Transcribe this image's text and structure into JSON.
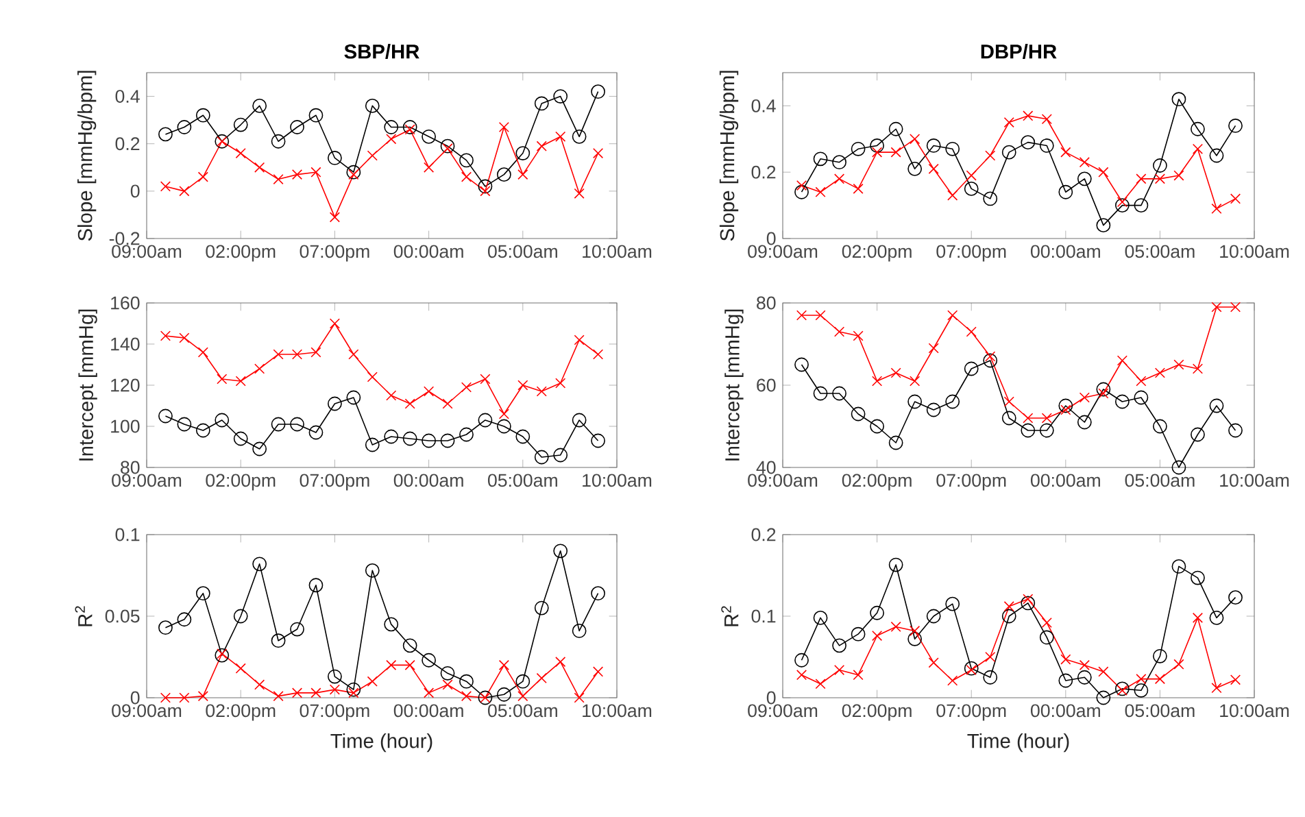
{
  "chart_data": [
    {
      "type": "line",
      "title": "SBP/HR",
      "ylabel": "Slope [mmHg/bpm]",
      "x": [
        "2000-01-01T10:00",
        "2000-01-01T11:00",
        "2000-01-01T12:00",
        "2000-01-01T13:00",
        "2000-01-01T14:00",
        "2000-01-01T15:00",
        "2000-01-01T16:00",
        "2000-01-01T17:00",
        "2000-01-01T18:00",
        "2000-01-01T19:00",
        "2000-01-01T20:00",
        "2000-01-01T21:00",
        "2000-01-01T22:00",
        "2000-01-01T23:00",
        "2000-01-02T00:00",
        "2000-01-02T01:00",
        "2000-01-02T02:00",
        "2000-01-02T03:00",
        "2000-01-02T04:00",
        "2000-01-02T05:00",
        "2000-01-02T06:00",
        "2000-01-02T07:00",
        "2000-01-02T08:00",
        "2000-01-02T09:00"
      ],
      "xlim": [
        "2000-01-01T09:00",
        "2000-01-02T10:00"
      ],
      "xticks": [
        {
          "value": "2000-01-01T09:00",
          "label": "09:00am"
        },
        {
          "value": "2000-01-01T14:00",
          "label": "02:00pm"
        },
        {
          "value": "2000-01-01T19:00",
          "label": "07:00pm"
        },
        {
          "value": "2000-01-02T00:00",
          "label": "00:00am"
        },
        {
          "value": "2000-01-02T05:00",
          "label": "05:00am"
        },
        {
          "value": "2000-01-02T10:00",
          "label": "10:00am"
        }
      ],
      "ylim": [
        -0.2,
        0.5
      ],
      "yticks": [
        -0.2,
        0,
        0.2,
        0.4
      ],
      "series": [
        {
          "color": "#000000",
          "marker": "circle",
          "values": [
            0.24,
            0.27,
            0.32,
            0.21,
            0.28,
            0.36,
            0.21,
            0.27,
            0.32,
            0.14,
            0.08,
            0.36,
            0.27,
            0.27,
            0.23,
            0.19,
            0.13,
            0.02,
            0.07,
            0.16,
            0.37,
            0.4,
            0.23,
            0.42
          ]
        },
        {
          "color": "#ff0000",
          "marker": "cross",
          "values": [
            0.02,
            0,
            0.06,
            0.21,
            0.16,
            0.1,
            0.05,
            0.07,
            0.08,
            -0.11,
            0.07,
            0.15,
            0.22,
            0.26,
            0.1,
            0.18,
            0.06,
            0,
            0.27,
            0.07,
            0.19,
            0.23,
            -0.01,
            0.16
          ]
        }
      ]
    },
    {
      "type": "line",
      "title": "DBP/HR",
      "ylabel": "Slope [mmHg/bpm]",
      "x": [
        "2000-01-01T10:00",
        "2000-01-01T11:00",
        "2000-01-01T12:00",
        "2000-01-01T13:00",
        "2000-01-01T14:00",
        "2000-01-01T15:00",
        "2000-01-01T16:00",
        "2000-01-01T17:00",
        "2000-01-01T18:00",
        "2000-01-01T19:00",
        "2000-01-01T20:00",
        "2000-01-01T21:00",
        "2000-01-01T22:00",
        "2000-01-01T23:00",
        "2000-01-02T00:00",
        "2000-01-02T01:00",
        "2000-01-02T02:00",
        "2000-01-02T03:00",
        "2000-01-02T04:00",
        "2000-01-02T05:00",
        "2000-01-02T06:00",
        "2000-01-02T07:00",
        "2000-01-02T08:00",
        "2000-01-02T09:00"
      ],
      "xlim": [
        "2000-01-01T09:00",
        "2000-01-02T10:00"
      ],
      "xticks": [
        {
          "value": "2000-01-01T09:00",
          "label": "09:00am"
        },
        {
          "value": "2000-01-01T14:00",
          "label": "02:00pm"
        },
        {
          "value": "2000-01-01T19:00",
          "label": "07:00pm"
        },
        {
          "value": "2000-01-02T00:00",
          "label": "00:00am"
        },
        {
          "value": "2000-01-02T05:00",
          "label": "05:00am"
        },
        {
          "value": "2000-01-02T10:00",
          "label": "10:00am"
        }
      ],
      "ylim": [
        0,
        0.5
      ],
      "yticks": [
        0,
        0.2,
        0.4
      ],
      "series": [
        {
          "color": "#000000",
          "marker": "circle",
          "values": [
            0.14,
            0.24,
            0.23,
            0.27,
            0.28,
            0.33,
            0.21,
            0.28,
            0.27,
            0.15,
            0.12,
            0.26,
            0.29,
            0.28,
            0.14,
            0.18,
            0.04,
            0.1,
            0.1,
            0.22,
            0.42,
            0.33,
            0.25,
            0.34
          ]
        },
        {
          "color": "#ff0000",
          "marker": "cross",
          "values": [
            0.16,
            0.14,
            0.18,
            0.15,
            0.26,
            0.26,
            0.3,
            0.21,
            0.13,
            0.19,
            0.25,
            0.35,
            0.37,
            0.36,
            0.26,
            0.23,
            0.2,
            0.11,
            0.18,
            0.18,
            0.19,
            0.27,
            0.09,
            0.12
          ]
        }
      ]
    },
    {
      "type": "line",
      "ylabel": "Intercept [mmHg]",
      "x": [
        "2000-01-01T10:00",
        "2000-01-01T11:00",
        "2000-01-01T12:00",
        "2000-01-01T13:00",
        "2000-01-01T14:00",
        "2000-01-01T15:00",
        "2000-01-01T16:00",
        "2000-01-01T17:00",
        "2000-01-01T18:00",
        "2000-01-01T19:00",
        "2000-01-01T20:00",
        "2000-01-01T21:00",
        "2000-01-01T22:00",
        "2000-01-01T23:00",
        "2000-01-02T00:00",
        "2000-01-02T01:00",
        "2000-01-02T02:00",
        "2000-01-02T03:00",
        "2000-01-02T04:00",
        "2000-01-02T05:00",
        "2000-01-02T06:00",
        "2000-01-02T07:00",
        "2000-01-02T08:00",
        "2000-01-02T09:00"
      ],
      "xlim": [
        "2000-01-01T09:00",
        "2000-01-02T10:00"
      ],
      "xticks": [
        {
          "value": "2000-01-01T09:00",
          "label": "09:00am"
        },
        {
          "value": "2000-01-01T14:00",
          "label": "02:00pm"
        },
        {
          "value": "2000-01-01T19:00",
          "label": "07:00pm"
        },
        {
          "value": "2000-01-02T00:00",
          "label": "00:00am"
        },
        {
          "value": "2000-01-02T05:00",
          "label": "05:00am"
        },
        {
          "value": "2000-01-02T10:00",
          "label": "10:00am"
        }
      ],
      "ylim": [
        80,
        160
      ],
      "yticks": [
        80,
        100,
        120,
        140,
        160
      ],
      "series": [
        {
          "color": "#000000",
          "marker": "circle",
          "values": [
            105,
            101,
            98,
            103,
            94,
            89,
            101,
            101,
            97,
            111,
            114,
            91,
            95,
            94,
            93,
            93,
            96,
            103,
            100,
            95,
            85,
            86,
            103,
            93
          ]
        },
        {
          "color": "#ff0000",
          "marker": "cross",
          "values": [
            144,
            143,
            136,
            123,
            122,
            128,
            135,
            135,
            136,
            150,
            135,
            124,
            115,
            111,
            117,
            111,
            119,
            123,
            106,
            120,
            117,
            121,
            142,
            135
          ]
        }
      ]
    },
    {
      "type": "line",
      "ylabel": "Intercept [mmHg]",
      "x": [
        "2000-01-01T10:00",
        "2000-01-01T11:00",
        "2000-01-01T12:00",
        "2000-01-01T13:00",
        "2000-01-01T14:00",
        "2000-01-01T15:00",
        "2000-01-01T16:00",
        "2000-01-01T17:00",
        "2000-01-01T18:00",
        "2000-01-01T19:00",
        "2000-01-01T20:00",
        "2000-01-01T21:00",
        "2000-01-01T22:00",
        "2000-01-01T23:00",
        "2000-01-02T00:00",
        "2000-01-02T01:00",
        "2000-01-02T02:00",
        "2000-01-02T03:00",
        "2000-01-02T04:00",
        "2000-01-02T05:00",
        "2000-01-02T06:00",
        "2000-01-02T07:00",
        "2000-01-02T08:00",
        "2000-01-02T09:00"
      ],
      "xlim": [
        "2000-01-01T09:00",
        "2000-01-02T10:00"
      ],
      "xticks": [
        {
          "value": "2000-01-01T09:00",
          "label": "09:00am"
        },
        {
          "value": "2000-01-01T14:00",
          "label": "02:00pm"
        },
        {
          "value": "2000-01-01T19:00",
          "label": "07:00pm"
        },
        {
          "value": "2000-01-02T00:00",
          "label": "00:00am"
        },
        {
          "value": "2000-01-02T05:00",
          "label": "05:00am"
        },
        {
          "value": "2000-01-02T10:00",
          "label": "10:00am"
        }
      ],
      "ylim": [
        40,
        80
      ],
      "yticks": [
        40,
        60,
        80
      ],
      "series": [
        {
          "color": "#000000",
          "marker": "circle",
          "values": [
            65,
            58,
            58,
            53,
            50,
            46,
            56,
            54,
            56,
            64,
            66,
            52,
            49,
            49,
            55,
            51,
            59,
            56,
            57,
            50,
            40,
            48,
            55,
            49
          ]
        },
        {
          "color": "#ff0000",
          "marker": "cross",
          "values": [
            77,
            77,
            73,
            72,
            61,
            63,
            61,
            69,
            77,
            73,
            67,
            56,
            52,
            52,
            54,
            57,
            58,
            66,
            61,
            63,
            65,
            64,
            79,
            79
          ]
        }
      ]
    },
    {
      "type": "line",
      "ylabel": "R$^{2}$",
      "xlabel": "Time (hour)",
      "x": [
        "2000-01-01T10:00",
        "2000-01-01T11:00",
        "2000-01-01T12:00",
        "2000-01-01T13:00",
        "2000-01-01T14:00",
        "2000-01-01T15:00",
        "2000-01-01T16:00",
        "2000-01-01T17:00",
        "2000-01-01T18:00",
        "2000-01-01T19:00",
        "2000-01-01T20:00",
        "2000-01-01T21:00",
        "2000-01-01T22:00",
        "2000-01-01T23:00",
        "2000-01-02T00:00",
        "2000-01-02T01:00",
        "2000-01-02T02:00",
        "2000-01-02T03:00",
        "2000-01-02T04:00",
        "2000-01-02T05:00",
        "2000-01-02T06:00",
        "2000-01-02T07:00",
        "2000-01-02T08:00",
        "2000-01-02T09:00"
      ],
      "xlim": [
        "2000-01-01T09:00",
        "2000-01-02T10:00"
      ],
      "xticks": [
        {
          "value": "2000-01-01T09:00",
          "label": "09:00am"
        },
        {
          "value": "2000-01-01T14:00",
          "label": "02:00pm"
        },
        {
          "value": "2000-01-01T19:00",
          "label": "07:00pm"
        },
        {
          "value": "2000-01-02T00:00",
          "label": "00:00am"
        },
        {
          "value": "2000-01-02T05:00",
          "label": "05:00am"
        },
        {
          "value": "2000-01-02T10:00",
          "label": "10:00am"
        }
      ],
      "ylim": [
        0,
        0.1
      ],
      "yticks": [
        0,
        0.05,
        0.1
      ],
      "series": [
        {
          "color": "#000000",
          "marker": "circle",
          "values": [
            0.043,
            0.048,
            0.064,
            0.026,
            0.05,
            0.082,
            0.035,
            0.042,
            0.069,
            0.013,
            0.005,
            0.078,
            0.045,
            0.032,
            0.023,
            0.015,
            0.01,
            0,
            0.002,
            0.01,
            0.055,
            0.09,
            0.041,
            0.064
          ]
        },
        {
          "color": "#ff0000",
          "marker": "cross",
          "values": [
            0,
            0,
            0.001,
            0.027,
            0.018,
            0.008,
            0.001,
            0.003,
            0.003,
            0.005,
            0.003,
            0.01,
            0.02,
            0.02,
            0.003,
            0.008,
            0.001,
            0,
            0.02,
            0.001,
            0.012,
            0.022,
            0,
            0.016
          ]
        }
      ]
    },
    {
      "type": "line",
      "ylabel": "R$^{2}$",
      "xlabel": "Time (hour)",
      "x": [
        "2000-01-01T10:00",
        "2000-01-01T11:00",
        "2000-01-01T12:00",
        "2000-01-01T13:00",
        "2000-01-01T14:00",
        "2000-01-01T15:00",
        "2000-01-01T16:00",
        "2000-01-01T17:00",
        "2000-01-01T18:00",
        "2000-01-01T19:00",
        "2000-01-01T20:00",
        "2000-01-01T21:00",
        "2000-01-01T22:00",
        "2000-01-01T23:00",
        "2000-01-02T00:00",
        "2000-01-02T01:00",
        "2000-01-02T02:00",
        "2000-01-02T03:00",
        "2000-01-02T04:00",
        "2000-01-02T05:00",
        "2000-01-02T06:00",
        "2000-01-02T07:00",
        "2000-01-02T08:00",
        "2000-01-02T09:00"
      ],
      "xlim": [
        "2000-01-01T09:00",
        "2000-01-02T10:00"
      ],
      "xticks": [
        {
          "value": "2000-01-01T09:00",
          "label": "09:00am"
        },
        {
          "value": "2000-01-01T14:00",
          "label": "02:00pm"
        },
        {
          "value": "2000-01-01T19:00",
          "label": "07:00pm"
        },
        {
          "value": "2000-01-02T00:00",
          "label": "00:00am"
        },
        {
          "value": "2000-01-02T05:00",
          "label": "05:00am"
        },
        {
          "value": "2000-01-02T10:00",
          "label": "10:00am"
        }
      ],
      "ylim": [
        0,
        0.2
      ],
      "yticks": [
        0,
        0.1,
        0.2
      ],
      "series": [
        {
          "color": "#000000",
          "marker": "circle",
          "values": [
            0.046,
            0.098,
            0.064,
            0.078,
            0.104,
            0.163,
            0.072,
            0.1,
            0.115,
            0.036,
            0.025,
            0.1,
            0.116,
            0.074,
            0.021,
            0.025,
            0,
            0.011,
            0.009,
            0.051,
            0.161,
            0.147,
            0.098,
            0.123
          ]
        },
        {
          "color": "#ff0000",
          "marker": "cross",
          "values": [
            0.028,
            0.017,
            0.034,
            0.028,
            0.076,
            0.087,
            0.082,
            0.043,
            0.021,
            0.034,
            0.05,
            0.112,
            0.121,
            0.092,
            0.047,
            0.04,
            0.032,
            0.009,
            0.023,
            0.023,
            0.041,
            0.098,
            0.012,
            0.022
          ]
        }
      ]
    }
  ]
}
